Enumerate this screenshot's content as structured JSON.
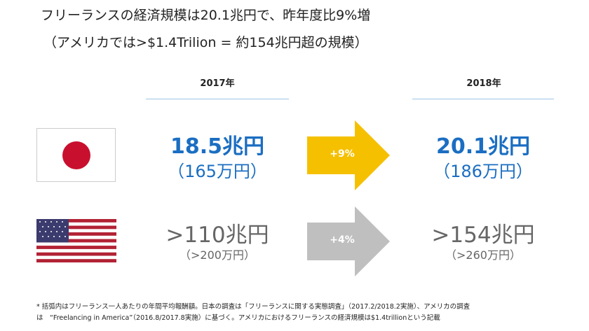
{
  "title": {
    "line1": "フリーランスの経済規模は20.1兆円で、昨年度比9%増",
    "line2": "（アメリカでは>$1.4Trilion = 約154兆円超の規模）"
  },
  "columns": {
    "y2017": "2017年",
    "y2018": "2018年"
  },
  "japan": {
    "v2017": "18.5兆円",
    "s2017": "（165万円）",
    "change": "+9%",
    "v2018": "20.1兆円",
    "s2018": "（186万円）"
  },
  "usa": {
    "v2017": ">110兆円",
    "s2017": "（>200万円）",
    "change": "+4%",
    "v2018": ">154兆円",
    "s2018": "（>260万円）"
  },
  "colors": {
    "blue": "#1B6EC2",
    "yellow": "#F5C000",
    "gray_arrow": "#BFBFBF",
    "flag_red": "#C8102E"
  },
  "footnote": {
    "line1": "* 括弧内はフリーランス一人あたりの年間平均報酬額。日本の調査は「フリーランスに関する実態調査」（2017.2/2018.2実施）、アメリカの調査",
    "line2": "は　“Freelancing in America”（2016.8/2017.8実施）に基づく。アメリカにおけるフリーランスの経済規模は$1.4trillionという記載"
  }
}
